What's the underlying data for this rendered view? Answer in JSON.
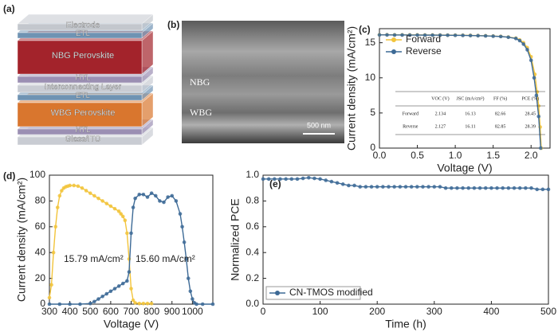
{
  "diagram": {
    "label": "(a)",
    "layers": [
      {
        "name": "Electrode",
        "color": "#c3c7cd"
      },
      {
        "name": "ETL",
        "color": "#6f93b3"
      },
      {
        "name": "NBG Perovskite",
        "color": "#a3232b"
      },
      {
        "name": "HTL",
        "color": "#9b8fb3"
      },
      {
        "name": "Interconnecting Layer",
        "color": "#c9ccd3"
      },
      {
        "name": "ETL",
        "color": "#6f93b3"
      },
      {
        "name": "WBG Perovskite",
        "color": "#d9762e"
      },
      {
        "name": "HTL",
        "color": "#9b8fb3"
      },
      {
        "name": "Glass/ITO",
        "color": "#c9ccd3"
      }
    ]
  },
  "image": {
    "label": "(b)",
    "regions": [
      "NBG",
      "WBG"
    ],
    "scale_bar": "500 nm"
  },
  "chart_data": [
    {
      "type": "line",
      "label": "(c)",
      "xlabel": "Voltage (V)",
      "ylabel": "Current density (mA/cm²)",
      "xlim": [
        0,
        2.25
      ],
      "ylim": [
        0,
        17
      ],
      "xticks": [
        {
          "value": 0,
          "label": "0.0"
        },
        0.5,
        {
          "value": 1,
          "label": "1.0"
        },
        1.5,
        {
          "value": 2,
          "label": "2.0"
        }
      ],
      "yticks": [
        0,
        5,
        10,
        15
      ],
      "legend": "upper left",
      "series": [
        {
          "name": "Forward",
          "color": "#f2c43b",
          "x": [
            0,
            0.1,
            0.2,
            0.3,
            0.4,
            0.5,
            0.6,
            0.7,
            0.8,
            0.9,
            1.0,
            1.1,
            1.2,
            1.3,
            1.4,
            1.5,
            1.6,
            1.7,
            1.8,
            1.85,
            1.9,
            1.95,
            2.0,
            2.05,
            2.08,
            2.1,
            2.12,
            2.134
          ],
          "values": [
            16.13,
            16.13,
            16.12,
            16.12,
            16.11,
            16.11,
            16.1,
            16.1,
            16.09,
            16.08,
            16.07,
            16.06,
            16.04,
            16.02,
            15.99,
            15.95,
            15.9,
            15.8,
            15.65,
            15.4,
            15.0,
            14.3,
            13.0,
            10.5,
            8.0,
            6.0,
            3.0,
            0
          ]
        },
        {
          "name": "Reverse",
          "color": "#3d6a96",
          "x": [
            0,
            0.1,
            0.2,
            0.3,
            0.4,
            0.5,
            0.6,
            0.7,
            0.8,
            0.9,
            1.0,
            1.1,
            1.2,
            1.3,
            1.4,
            1.5,
            1.6,
            1.7,
            1.8,
            1.85,
            1.9,
            1.95,
            2.0,
            2.04,
            2.07,
            2.1,
            2.127
          ],
          "values": [
            16.11,
            16.11,
            16.1,
            16.1,
            16.09,
            16.09,
            16.08,
            16.08,
            16.07,
            16.06,
            16.05,
            16.04,
            16.02,
            16.0,
            15.97,
            15.93,
            15.88,
            15.78,
            15.6,
            15.3,
            14.8,
            14.0,
            12.5,
            10.0,
            7.5,
            4.5,
            0
          ]
        }
      ],
      "table": {
        "columns": [
          "VOC (V)",
          "JSC (mA/cm²)",
          "FF (%)",
          "PCE (%)"
        ],
        "rows": [
          {
            "name": "Forward",
            "cells": [
              2.134,
              16.13,
              82.66,
              28.45
            ]
          },
          {
            "name": "Reverse",
            "cells": [
              2.127,
              16.11,
              82.85,
              28.39
            ]
          }
        ]
      }
    },
    {
      "type": "line",
      "label": "(d)",
      "xlabel": "Voltage (V)",
      "ylabel": "Current density (mA/cm²)",
      "xlim": [
        300,
        1100
      ],
      "ylim": [
        0,
        100
      ],
      "xticks": [
        300,
        400,
        500,
        600,
        700,
        800,
        900,
        1000
      ],
      "yticks": [
        0,
        20,
        40,
        60,
        80,
        100
      ],
      "annotations": [
        "15.79 mA/cm²",
        "15.60 mA/cm²"
      ],
      "series": [
        {
          "color": "#f2c43b",
          "x": [
            300,
            310,
            320,
            330,
            340,
            350,
            360,
            370,
            380,
            390,
            400,
            420,
            440,
            460,
            480,
            500,
            520,
            540,
            560,
            580,
            600,
            620,
            640,
            650,
            660,
            670,
            680,
            690,
            700,
            710,
            720,
            740,
            760,
            780,
            800
          ],
          "values": [
            5,
            15,
            40,
            60,
            75,
            84,
            88,
            90,
            91,
            91.5,
            92,
            92,
            91.5,
            90,
            88,
            86,
            84,
            82,
            80,
            78,
            76,
            74,
            72,
            70,
            68,
            65,
            55,
            35,
            12,
            3,
            1,
            0.5,
            0.5,
            0.5,
            0.5
          ]
        },
        {
          "color": "#3d6a96",
          "x": [
            300,
            350,
            400,
            450,
            500,
            520,
            540,
            560,
            580,
            600,
            620,
            640,
            660,
            680,
            690,
            700,
            710,
            720,
            740,
            760,
            780,
            800,
            820,
            840,
            860,
            880,
            900,
            920,
            940,
            950,
            960,
            970,
            980,
            990,
            1000,
            1010,
            1020,
            1050,
            1100
          ],
          "values": [
            0,
            0,
            0,
            0,
            0.5,
            2,
            4,
            6,
            8,
            10,
            12,
            14,
            16,
            18,
            25,
            55,
            75,
            82,
            85,
            85,
            83,
            86,
            84,
            80,
            79,
            83,
            84,
            80,
            70,
            60,
            48,
            35,
            20,
            10,
            4,
            1,
            0,
            0,
            0
          ]
        }
      ]
    },
    {
      "type": "line",
      "label": "(e)",
      "xlabel": "Time (h)",
      "ylabel": "Normalized PCE",
      "xlim": [
        0,
        500
      ],
      "ylim": [
        0,
        1
      ],
      "xticks": [
        0,
        100,
        200,
        300,
        400,
        500
      ],
      "yticks": [
        {
          "value": 0,
          "label": "0.0"
        },
        0.2,
        0.4,
        0.6,
        0.8,
        {
          "value": 1,
          "label": "1.0"
        }
      ],
      "legend": "lower left",
      "series": [
        {
          "name": "CN-TMOS modified",
          "color": "#3d6a96",
          "x": [
            0,
            10,
            20,
            30,
            40,
            50,
            60,
            70,
            80,
            90,
            100,
            110,
            120,
            130,
            140,
            150,
            160,
            170,
            180,
            190,
            200,
            210,
            220,
            230,
            240,
            250,
            260,
            270,
            280,
            290,
            300,
            310,
            320,
            330,
            340,
            350,
            360,
            370,
            380,
            390,
            400,
            410,
            420,
            430,
            440,
            450,
            460,
            470,
            480,
            490,
            500
          ],
          "values": [
            0.97,
            0.97,
            0.97,
            0.97,
            0.97,
            0.97,
            0.97,
            0.975,
            0.98,
            0.975,
            0.97,
            0.96,
            0.95,
            0.94,
            0.93,
            0.92,
            0.92,
            0.91,
            0.91,
            0.91,
            0.91,
            0.91,
            0.91,
            0.91,
            0.91,
            0.91,
            0.91,
            0.91,
            0.91,
            0.91,
            0.91,
            0.91,
            0.9,
            0.9,
            0.9,
            0.9,
            0.9,
            0.9,
            0.9,
            0.9,
            0.9,
            0.9,
            0.9,
            0.9,
            0.9,
            0.9,
            0.9,
            0.9,
            0.89,
            0.89,
            0.89
          ]
        }
      ]
    }
  ]
}
